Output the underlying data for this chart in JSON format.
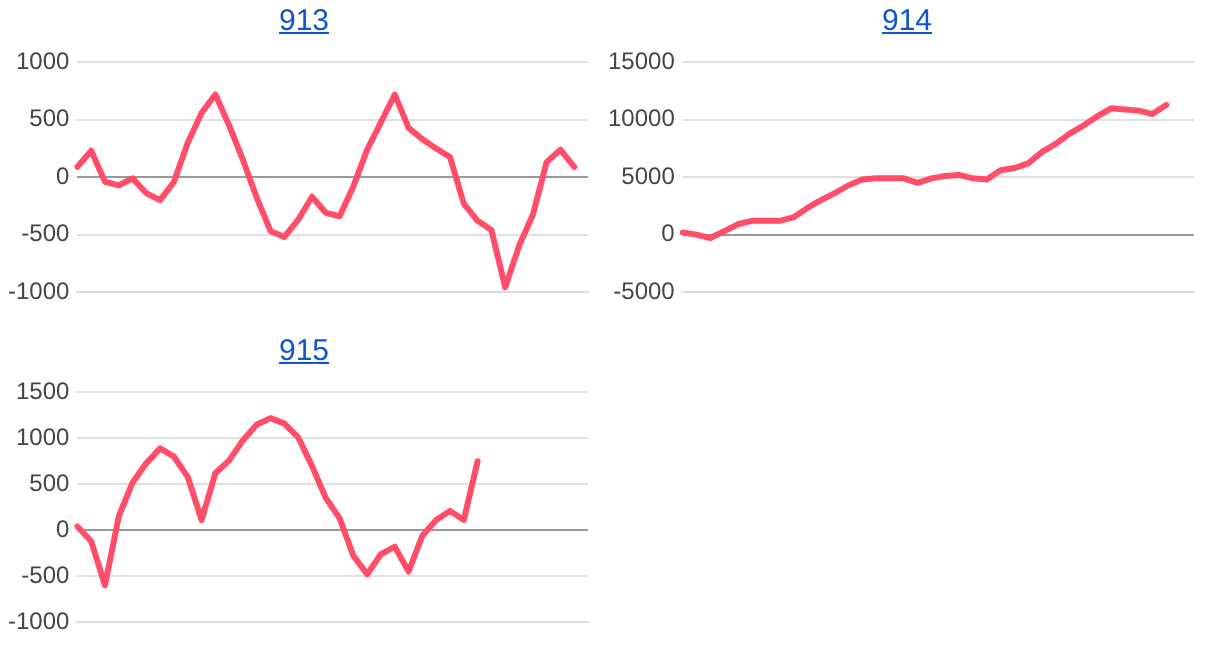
{
  "chart_data": [
    {
      "type": "line",
      "title": "913",
      "categories": [
        null,
        null,
        null,
        null,
        null,
        null,
        null,
        null,
        null,
        null,
        null,
        null,
        null,
        null,
        null,
        null,
        null,
        null,
        null,
        null,
        null,
        null,
        null,
        null,
        null,
        null,
        null,
        null,
        null,
        null,
        null,
        null,
        null,
        null,
        null,
        null,
        null,
        null
      ],
      "series": [
        {
          "color": "#ff4d6a",
          "values": [
            90,
            230,
            -40,
            -70,
            -10,
            -140,
            -200,
            -40,
            300,
            560,
            720,
            450,
            150,
            -180,
            -470,
            -520,
            -370,
            -170,
            -310,
            -340,
            -80,
            240,
            480,
            720,
            430,
            330,
            250,
            175,
            -230,
            -380,
            -460,
            -960,
            -600,
            -330,
            130,
            240,
            90,
            null
          ]
        }
      ],
      "ylim": [
        -1000,
        1000
      ],
      "yticks": [
        -1000,
        -500,
        0,
        500,
        1000
      ],
      "grid": "y",
      "tick_labels": "y",
      "legend": false
    },
    {
      "type": "line",
      "title": "914",
      "categories": [
        null,
        null,
        null,
        null,
        null,
        null,
        null,
        null,
        null,
        null,
        null,
        null,
        null,
        null,
        null,
        null,
        null,
        null,
        null,
        null,
        null,
        null,
        null,
        null,
        null,
        null,
        null,
        null,
        null,
        null,
        null,
        null,
        null,
        null,
        null,
        null,
        null,
        null
      ],
      "series": [
        {
          "color": "#ff4d6a",
          "values": [
            175,
            0,
            -300,
            300,
            900,
            1200,
            1200,
            1200,
            1500,
            2300,
            3000,
            3600,
            4300,
            4800,
            4900,
            4900,
            4900,
            4500,
            4900,
            5100,
            5200,
            4900,
            4800,
            5600,
            5800,
            6200,
            7200,
            7900,
            8800,
            9500,
            10300,
            11000,
            10900,
            10800,
            10500,
            11300,
            null,
            null
          ]
        }
      ],
      "ylim": [
        -5000,
        15000
      ],
      "yticks": [
        -5000,
        0,
        5000,
        10000,
        15000
      ],
      "grid": "y",
      "tick_labels": "y",
      "legend": false
    },
    {
      "type": "line",
      "title": "915",
      "categories": [
        null,
        null,
        null,
        null,
        null,
        null,
        null,
        null,
        null,
        null,
        null,
        null,
        null,
        null,
        null,
        null,
        null,
        null,
        null,
        null,
        null,
        null,
        null,
        null,
        null,
        null,
        null,
        null,
        null,
        null,
        null,
        null,
        null,
        null,
        null,
        null,
        null,
        null
      ],
      "series": [
        {
          "color": "#ff4d6a",
          "values": [
            40,
            -120,
            -600,
            150,
            520,
            730,
            890,
            800,
            580,
            110,
            620,
            760,
            980,
            1150,
            1220,
            1160,
            1010,
            700,
            350,
            130,
            -280,
            -480,
            -260,
            -180,
            -450,
            -60,
            110,
            210,
            110,
            750,
            null,
            null,
            null,
            null,
            null,
            null,
            null,
            null
          ]
        }
      ],
      "ylim": [
        -1000,
        1500
      ],
      "yticks": [
        -1000,
        -500,
        0,
        500,
        1000,
        1500
      ],
      "grid": "y",
      "tick_labels": "y",
      "legend": false
    }
  ]
}
